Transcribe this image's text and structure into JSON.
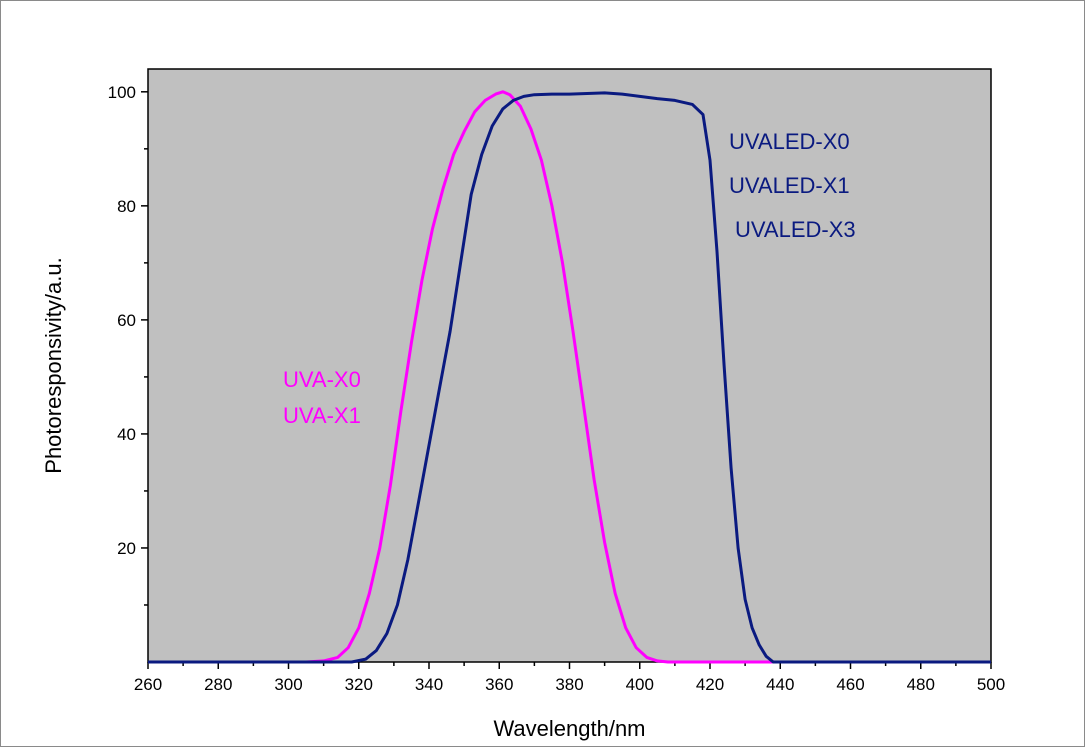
{
  "chart_data": {
    "type": "line",
    "title": "",
    "xlabel": "Wavelength/nm",
    "ylabel": "Photoresponsivity/a.u.",
    "xlim": [
      260,
      500
    ],
    "ylim": [
      0,
      104
    ],
    "grid": false,
    "background_color": "#c0c0c0",
    "x_ticks": [
      260,
      280,
      300,
      320,
      340,
      360,
      380,
      400,
      420,
      440,
      460,
      480,
      500
    ],
    "x_tick_labels": [
      "260",
      "280",
      "300",
      "320",
      "340",
      "360",
      "380",
      "400",
      "420",
      "440",
      "460",
      "480",
      "500"
    ],
    "y_ticks": [
      20,
      40,
      60,
      80,
      100
    ],
    "y_tick_labels": [
      "20",
      "40",
      "60",
      "80",
      "100"
    ],
    "series": [
      {
        "color": "#ff00ff",
        "labels": [
          "UVA-X0",
          "UVA-X1"
        ],
        "x": [
          260,
          305,
          310,
          314,
          317,
          320,
          323,
          326,
          329,
          332,
          335,
          338,
          341,
          344,
          347,
          350,
          353,
          356,
          359,
          361,
          363,
          366,
          369,
          372,
          375,
          378,
          381,
          384,
          387,
          390,
          393,
          396,
          399,
          402,
          405,
          408,
          412,
          420,
          500
        ],
        "y": [
          0,
          0,
          0.2,
          0.8,
          2.5,
          6,
          12,
          20,
          31,
          44,
          56,
          67,
          76,
          83,
          89,
          93,
          96.5,
          98.5,
          99.6,
          100,
          99.5,
          97.5,
          93.5,
          88,
          80,
          70,
          58,
          45,
          32,
          21,
          12,
          6,
          2.5,
          0.8,
          0.2,
          0,
          0,
          0,
          0
        ]
      },
      {
        "color": "#0a1a80",
        "labels": [
          "UVALED-X0",
          "UVALED-X1",
          "UVALED-X3"
        ],
        "x": [
          260,
          318,
          322,
          325,
          328,
          331,
          334,
          337,
          340,
          343,
          346,
          349,
          352,
          355,
          358,
          361,
          364,
          367,
          370,
          375,
          380,
          385,
          390,
          395,
          400,
          405,
          410,
          415,
          418,
          420,
          422,
          424,
          426,
          428,
          430,
          432,
          434,
          436,
          438,
          440,
          500
        ],
        "y": [
          0,
          0,
          0.5,
          2,
          5,
          10,
          18,
          28,
          38,
          48,
          58,
          70,
          82,
          89,
          94,
          97,
          98.5,
          99.2,
          99.5,
          99.6,
          99.6,
          99.7,
          99.8,
          99.6,
          99.2,
          98.8,
          98.5,
          97.8,
          96,
          88,
          72,
          52,
          34,
          20,
          11,
          6,
          3,
          1,
          0,
          0,
          0
        ]
      }
    ]
  }
}
